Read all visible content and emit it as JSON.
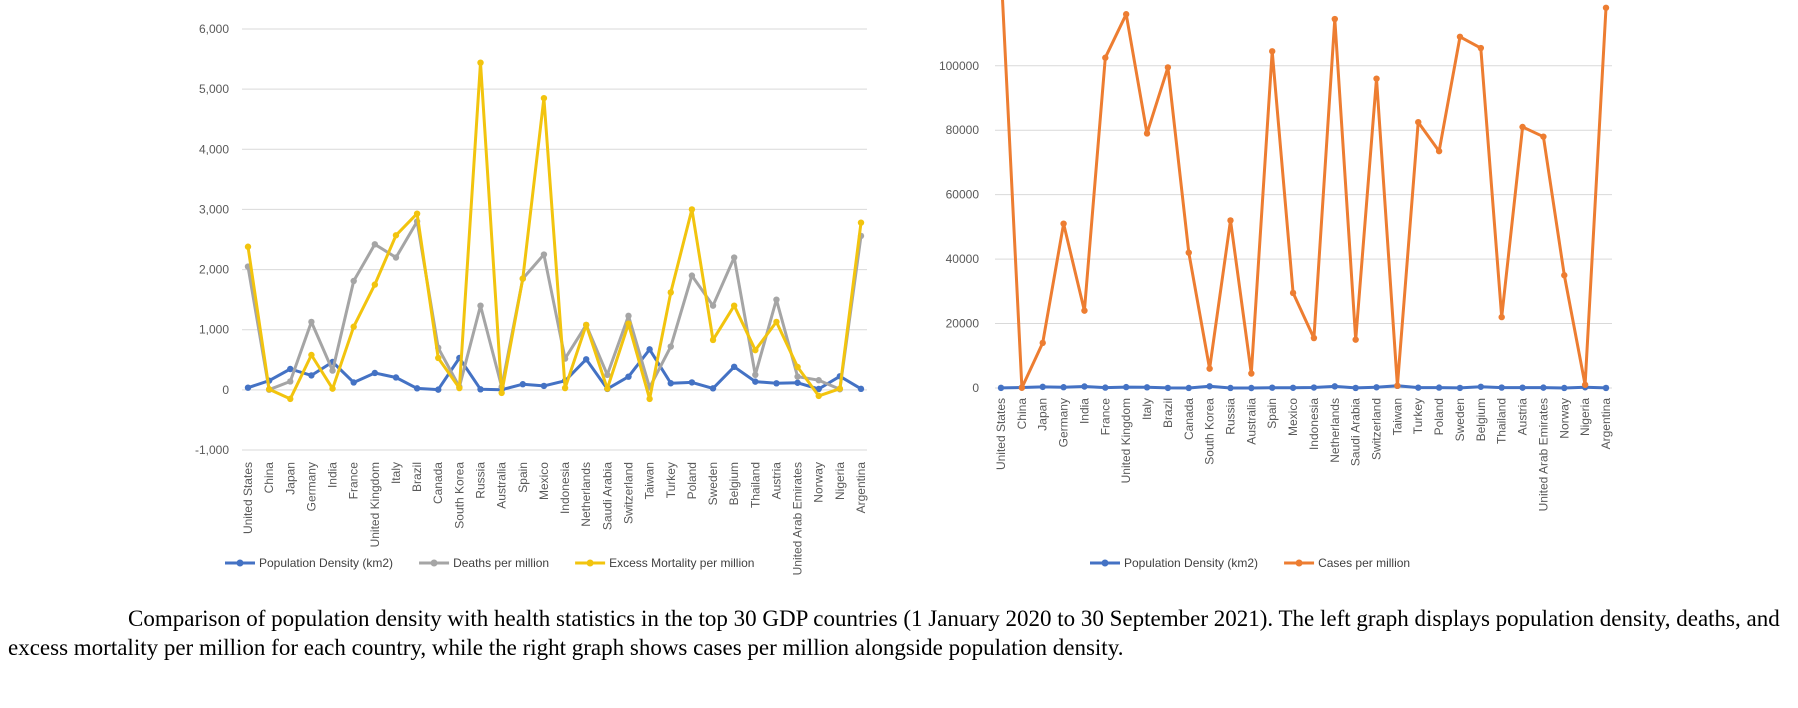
{
  "caption": "Comparison of population density with health statistics in the top 30 GDP countries (1 January 2020 to 30 September 2021). The left graph displays population density, deaths, and excess mortality per million for each country, while the right graph shows cases per million alongside population density.",
  "chart_data": [
    {
      "type": "line",
      "categories": [
        "United States",
        "China",
        "Japan",
        "Germany",
        "India",
        "France",
        "United Kingdom",
        "Italy",
        "Brazil",
        "Canada",
        "South Korea",
        "Russia",
        "Australia",
        "Spain",
        "Mexico",
        "Indonesia",
        "Netherlands",
        "Saudi Arabia",
        "Switzerland",
        "Taiwan",
        "Turkey",
        "Poland",
        "Sweden",
        "Belgium",
        "Thailand",
        "Austria",
        "United Arab Emirates",
        "Norway",
        "Nigeria",
        "Argentina"
      ],
      "ylim": [
        -1000,
        6000
      ],
      "yticks": [
        "-1,000",
        "0",
        "1,000",
        "2,000",
        "3,000",
        "4,000",
        "5,000",
        "6,000"
      ],
      "ytick_values": [
        -1000,
        0,
        1000,
        2000,
        3000,
        4000,
        5000,
        6000
      ],
      "grid": true,
      "legend_position": "bottom",
      "series": [
        {
          "name": "Population Density (km2)",
          "color": "#4472c4",
          "values": [
            36,
            153,
            347,
            240,
            464,
            123,
            281,
            206,
            25,
            4,
            530,
            9,
            3,
            94,
            66,
            151,
            508,
            16,
            219,
            673,
            110,
            124,
            25,
            383,
            137,
            109,
            118,
            15,
            226,
            17
          ]
        },
        {
          "name": "Deaths per million",
          "color": "#a5a5a5",
          "values": [
            2050,
            3,
            140,
            1130,
            320,
            1810,
            2420,
            2200,
            2800,
            700,
            50,
            1400,
            50,
            1850,
            2250,
            520,
            1080,
            250,
            1230,
            40,
            720,
            1900,
            1400,
            2200,
            250,
            1500,
            220,
            160,
            10,
            2560
          ]
        },
        {
          "name": "Excess Mortality per million",
          "color": "#f2c40e",
          "values": [
            2380,
            10,
            -150,
            580,
            20,
            1050,
            1750,
            2570,
            2930,
            530,
            30,
            5440,
            -50,
            1850,
            4850,
            30,
            1080,
            20,
            1100,
            -150,
            1620,
            3000,
            830,
            1400,
            660,
            1130,
            380,
            -100,
            20,
            2780
          ]
        }
      ]
    },
    {
      "type": "line",
      "categories": [
        "United States",
        "China",
        "Japan",
        "Germany",
        "India",
        "France",
        "United Kingdom",
        "Italy",
        "Brazil",
        "Canada",
        "South Korea",
        "Russia",
        "Australia",
        "Spain",
        "Mexico",
        "Indonesia",
        "Netherlands",
        "Saudi Arabia",
        "Switzerland",
        "Taiwan",
        "Turkey",
        "Poland",
        "Sweden",
        "Belgium",
        "Thailand",
        "Austria",
        "United Arab Emirates",
        "Norway",
        "Nigeria",
        "Argentina"
      ],
      "ylim": [
        0,
        117000
      ],
      "yticks": [
        "0",
        "20000",
        "40000",
        "60000",
        "80000",
        "100000"
      ],
      "ytick_values": [
        0,
        20000,
        40000,
        60000,
        80000,
        100000
      ],
      "grid": true,
      "legend_position": "bottom",
      "series": [
        {
          "name": "Population Density (km2)",
          "color": "#4472c4",
          "values": [
            36,
            153,
            347,
            240,
            464,
            123,
            281,
            206,
            25,
            4,
            530,
            9,
            3,
            94,
            66,
            151,
            508,
            16,
            219,
            673,
            110,
            124,
            25,
            383,
            137,
            109,
            118,
            15,
            226,
            17
          ]
        },
        {
          "name": "Cases per million",
          "color": "#ed7d31",
          "values": [
            130000,
            70,
            14000,
            51000,
            24000,
            102500,
            116000,
            79000,
            99500,
            42000,
            6000,
            52000,
            4500,
            104500,
            29500,
            15500,
            114500,
            15000,
            96000,
            700,
            82500,
            73500,
            109000,
            105500,
            22000,
            81000,
            78000,
            35000,
            1000,
            118000
          ]
        }
      ]
    }
  ]
}
